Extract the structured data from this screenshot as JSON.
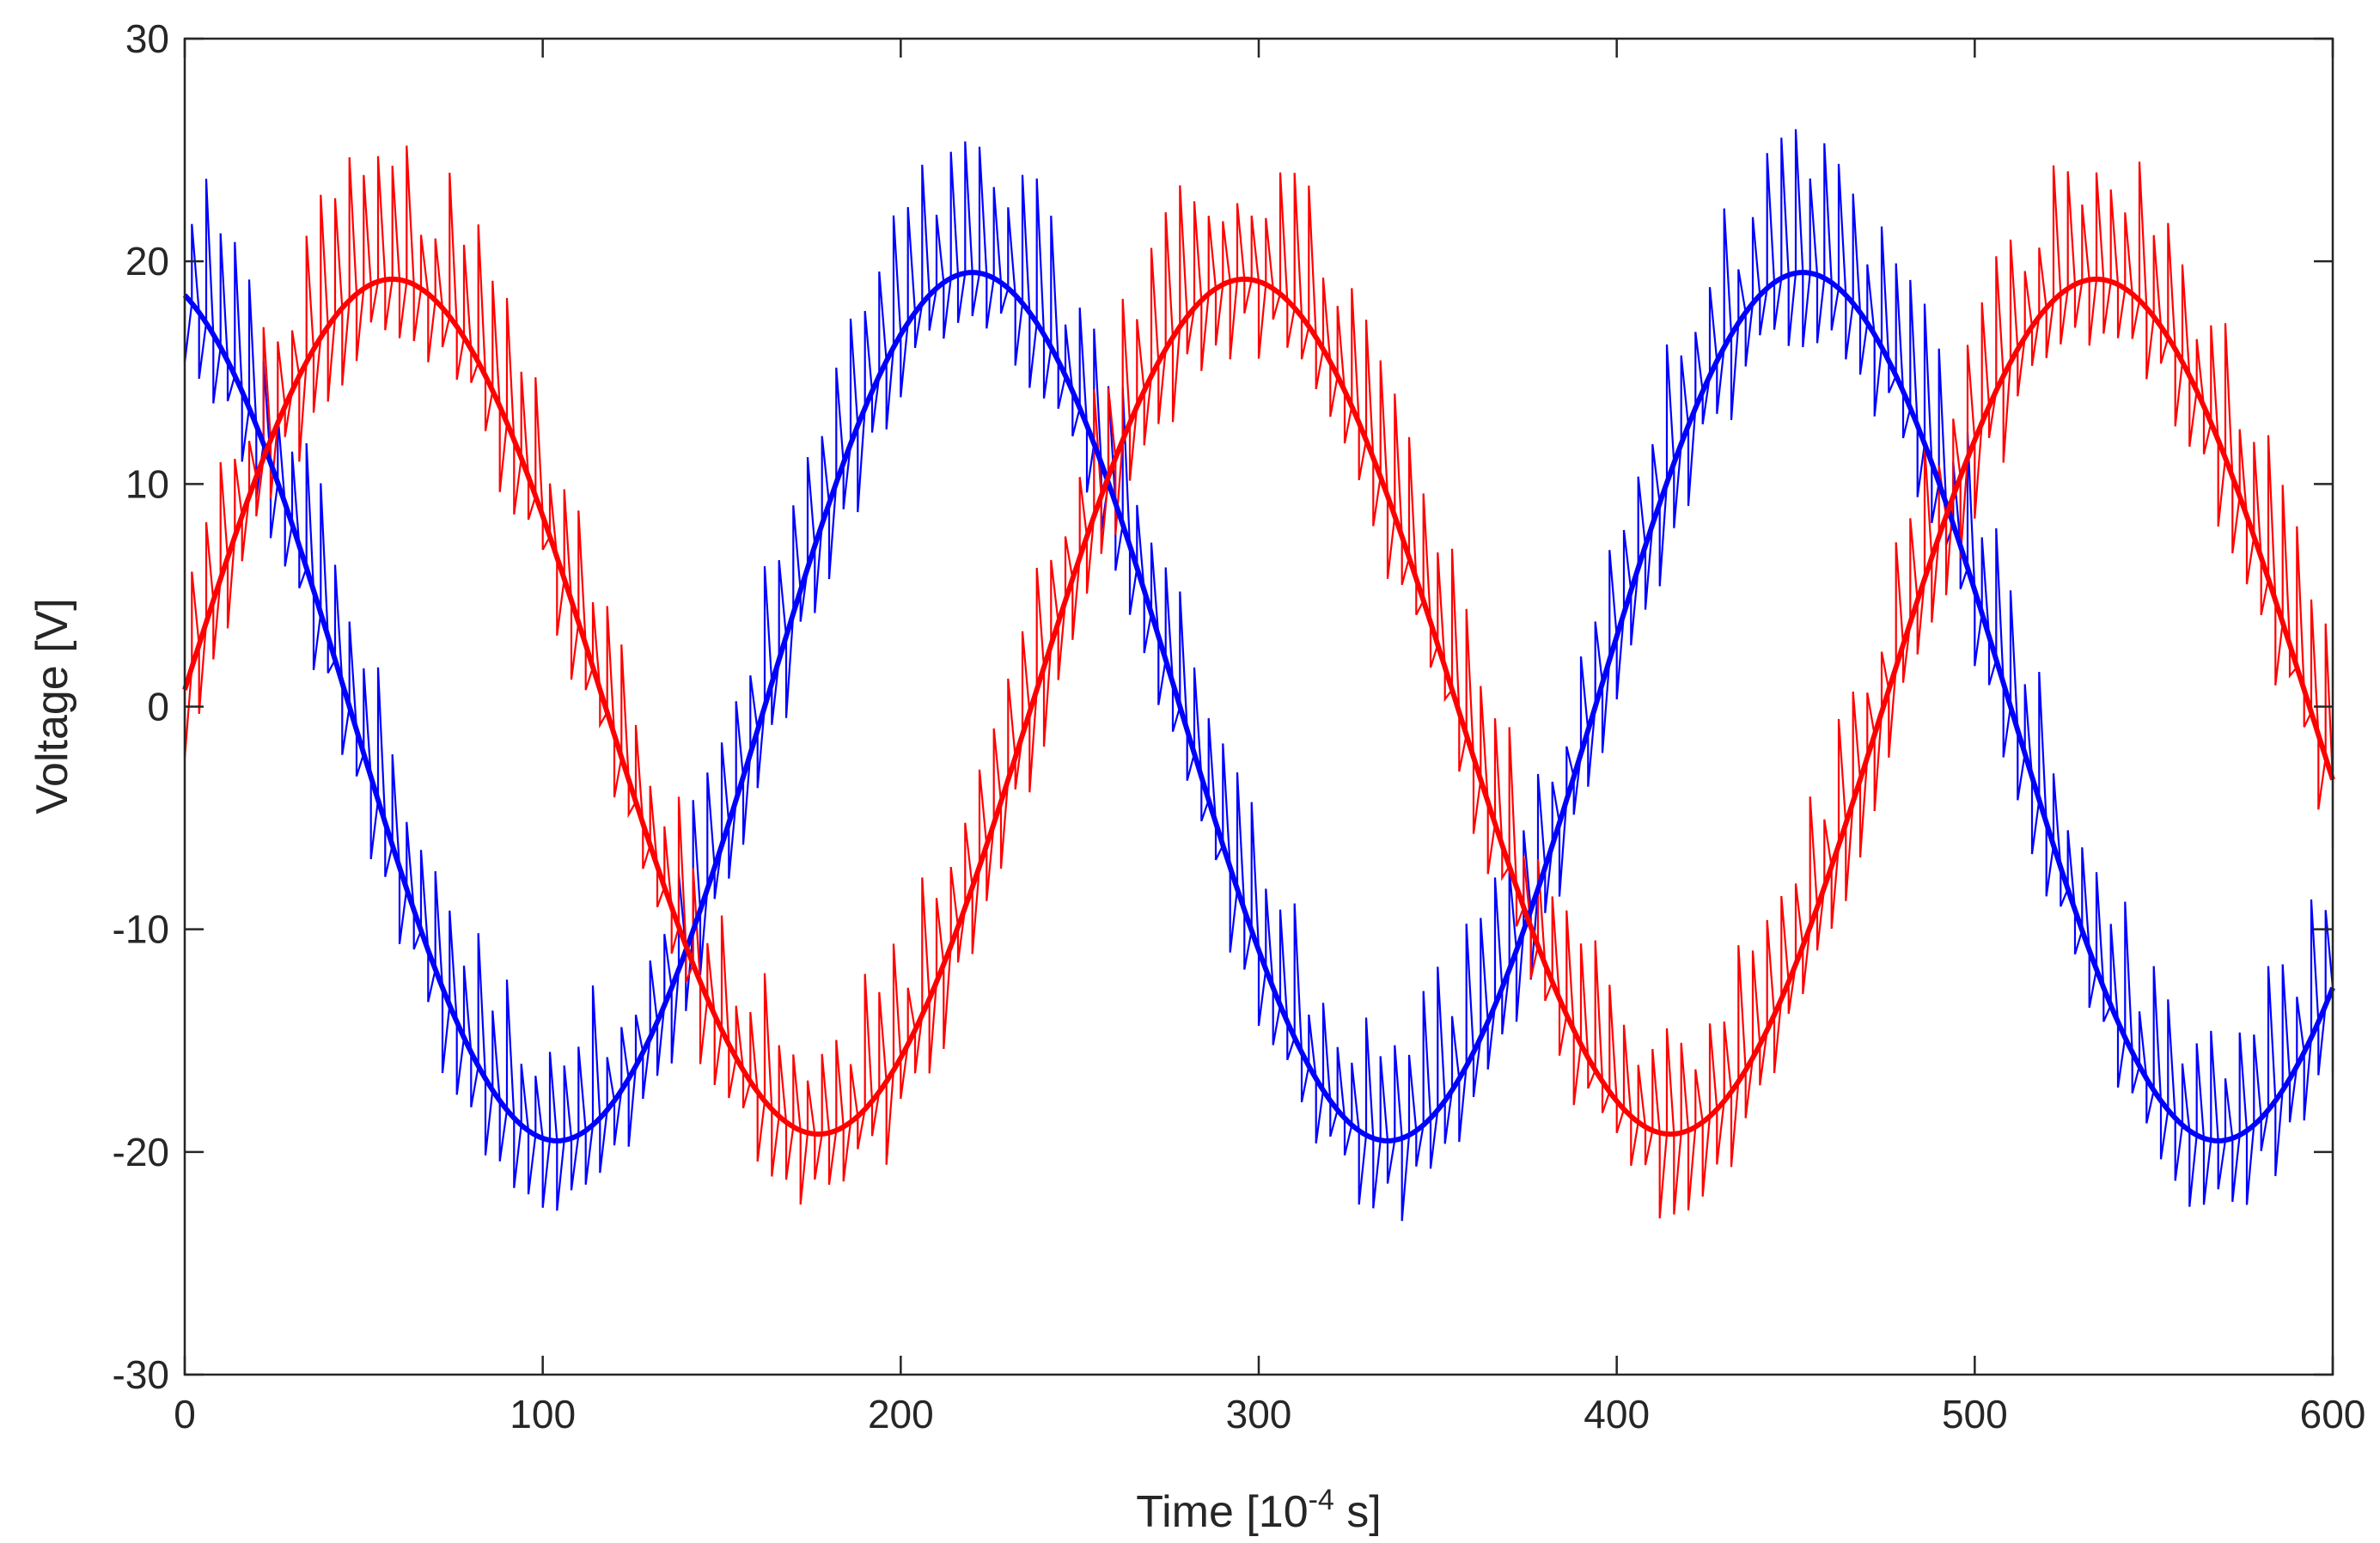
{
  "chart_data": {
    "type": "line",
    "title": "",
    "xlabel": {
      "prefix": "Time [10",
      "exponent": "-4",
      "suffix": " s]"
    },
    "ylabel": "Voltage [V]",
    "xlim": [
      0,
      600
    ],
    "ylim": [
      -30,
      30
    ],
    "xticks": [
      0,
      100,
      200,
      300,
      400,
      500,
      600
    ],
    "yticks": [
      -30,
      -20,
      -10,
      0,
      10,
      20,
      30
    ],
    "xtick_labels": [
      "0",
      "100",
      "200",
      "300",
      "400",
      "500",
      "600"
    ],
    "ytick_labels": [
      "-30",
      "-20",
      "-10",
      "0",
      "10",
      "20",
      "30"
    ],
    "grid": false,
    "legend": null,
    "series": [
      {
        "name": "blue-fundamental",
        "color": "#0000ff",
        "kind": "smooth",
        "function": "sine",
        "amplitude": 19.5,
        "period": 232,
        "peak_at": 220,
        "first_trough_at": 104,
        "value_at_0": 18.2
      },
      {
        "name": "red-fundamental",
        "color": "#ff0000",
        "kind": "smooth",
        "function": "sine",
        "amplitude": 19.2,
        "period": 238,
        "peak_at": 58,
        "first_trough_at": 177,
        "value_at_0": 1.5
      },
      {
        "name": "blue-pwm-noisy",
        "color": "#0000ff",
        "kind": "noisy",
        "follows": "blue-fundamental",
        "ripple_amplitude": 6.5,
        "ripple_period": 4
      },
      {
        "name": "red-pwm-noisy",
        "color": "#ff0000",
        "kind": "noisy",
        "follows": "red-fundamental",
        "ripple_amplitude": 6.5,
        "ripple_period": 4
      }
    ]
  }
}
